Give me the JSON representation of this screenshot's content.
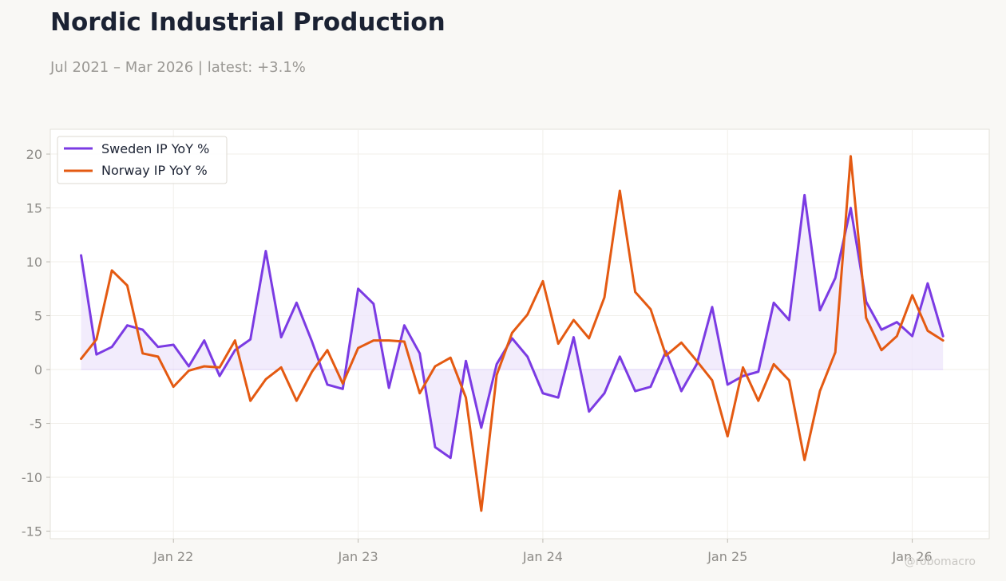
{
  "header": {
    "title": "Nordic Industrial Production",
    "subtitle": "Jul 2021 – Mar 2026 | latest: +3.1%"
  },
  "watermark": "@robomacro",
  "colors": {
    "background": "#f9f8f5",
    "plot_background": "#ffffff",
    "sweden": "#7b3be3",
    "norway": "#e45a12",
    "fill": "#ede6fb"
  },
  "chart_data": {
    "type": "line",
    "title": "Nordic Industrial Production",
    "subtitle": "Jul 2021 – Mar 2026 | latest: +3.1%",
    "xlabel": "",
    "ylabel": "",
    "x_start": "2021-07",
    "x": [
      "2021-07",
      "2021-08",
      "2021-09",
      "2021-10",
      "2021-11",
      "2021-12",
      "2022-01",
      "2022-02",
      "2022-03",
      "2022-04",
      "2022-05",
      "2022-06",
      "2022-07",
      "2022-08",
      "2022-09",
      "2022-10",
      "2022-11",
      "2022-12",
      "2023-01",
      "2023-02",
      "2023-03",
      "2023-04",
      "2023-05",
      "2023-06",
      "2023-07",
      "2023-08",
      "2023-09",
      "2023-10",
      "2023-11",
      "2023-12",
      "2024-01",
      "2024-02",
      "2024-03",
      "2024-04",
      "2024-05",
      "2024-06",
      "2024-07",
      "2024-08",
      "2024-09",
      "2024-10",
      "2024-11",
      "2024-12",
      "2025-01",
      "2025-02",
      "2025-03",
      "2025-04",
      "2025-05",
      "2025-06",
      "2025-07",
      "2025-08",
      "2025-09",
      "2025-10",
      "2025-11",
      "2025-12",
      "2026-01",
      "2026-02",
      "2026-03"
    ],
    "xlim": [
      "2021-05",
      "2026-06"
    ],
    "ylim": [
      -15.7,
      22.3
    ],
    "x_ticks": [
      {
        "label": "Jan 22",
        "date": "2022-01"
      },
      {
        "label": "Jan 23",
        "date": "2023-01"
      },
      {
        "label": "Jan 24",
        "date": "2024-01"
      },
      {
        "label": "Jan 25",
        "date": "2025-01"
      },
      {
        "label": "Jan 26",
        "date": "2026-01"
      }
    ],
    "y_ticks": [
      -15,
      -10,
      -5,
      0,
      5,
      10,
      15,
      20
    ],
    "y_tick_labels": [
      "-15",
      "-10",
      "-5",
      "0",
      "5",
      "10",
      "15",
      "20"
    ],
    "grid": true,
    "legend_position": "top-left",
    "series": [
      {
        "name": "Sweden IP YoY %",
        "color": "#7b3be3",
        "fill_to_zero": true,
        "values": [
          10.6,
          1.4,
          2.1,
          4.1,
          3.7,
          2.1,
          2.3,
          0.3,
          2.7,
          -0.6,
          1.8,
          2.8,
          11.0,
          3.0,
          6.2,
          2.6,
          -1.4,
          -1.8,
          7.5,
          6.1,
          -1.7,
          4.1,
          1.5,
          -7.2,
          -8.2,
          0.8,
          -5.4,
          0.5,
          2.9,
          1.2,
          -2.2,
          -2.6,
          3.0,
          -3.9,
          -2.2,
          1.2,
          -2.0,
          -1.6,
          1.7,
          -2.0,
          0.5,
          5.8,
          -1.4,
          -0.6,
          -0.2,
          6.2,
          4.6,
          16.2,
          5.5,
          8.5,
          15.0,
          6.3,
          3.7,
          4.4,
          3.1,
          8.0,
          3.1
        ]
      },
      {
        "name": "Norway IP YoY %",
        "color": "#e45a12",
        "fill_to_zero": false,
        "values": [
          1.0,
          2.8,
          9.2,
          7.8,
          1.5,
          1.2,
          -1.6,
          -0.1,
          0.3,
          0.2,
          2.7,
          -2.9,
          -0.9,
          0.2,
          -2.9,
          -0.2,
          1.8,
          -1.3,
          2.0,
          2.7,
          2.7,
          2.6,
          -2.2,
          0.3,
          1.1,
          -2.6,
          -13.1,
          -0.5,
          3.4,
          5.1,
          8.2,
          2.4,
          4.6,
          2.9,
          6.7,
          16.6,
          7.2,
          5.6,
          1.3,
          2.5,
          0.8,
          -1.0,
          -6.2,
          0.2,
          -2.9,
          0.5,
          -1.0,
          -8.4,
          -2.0,
          1.6,
          19.8,
          4.8,
          1.8,
          3.1,
          6.9,
          3.6,
          2.7
        ]
      }
    ]
  }
}
